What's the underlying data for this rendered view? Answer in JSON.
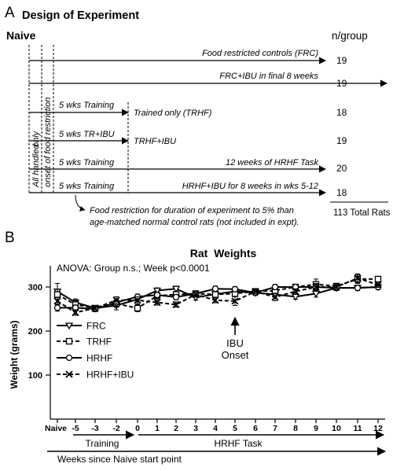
{
  "panel_a": {
    "letter": "A",
    "title": "Design of Experiment",
    "naive_label": "Naive",
    "n_header": "n/group",
    "rotated_label_1": "All handled",
    "rotated_label_2": "only",
    "rotated_label_3": "onset of food restriction",
    "groups": [
      {
        "training": "",
        "name": "Food restricted controls (FRC)",
        "n": "19"
      },
      {
        "training": "",
        "name": "FRC+IBU in final 8 weeks",
        "n": "19"
      },
      {
        "training": "5 wks Training",
        "name": "Trained only (TRHF)",
        "n": "18"
      },
      {
        "training": "5 wks TR+IBU",
        "name": "TRHF+IBU",
        "n": "19"
      },
      {
        "training": "5 wks Training",
        "name": "12 weeks of HRHF Task",
        "n": "20"
      },
      {
        "training": "5 wks Training",
        "name": "HRHF+IBU for 8 weeks in wks 5-12",
        "n": "18"
      }
    ],
    "note_line1": "Food restriction for duration of experiment to 5% than",
    "note_line2": "age-matched normal control rats (not included in expt).",
    "total": "113 Total Rats"
  },
  "panel_b": {
    "letter": "B",
    "stats": "ANOVA: Group n.s.; Week p<0.0001",
    "annotation": [
      "IBU",
      "Onset"
    ],
    "training_label": "Training",
    "task_label": "HRHF Task",
    "weeks_label": "Weeks since Naive start point"
  },
  "chart_data": {
    "type": "line",
    "title": "Rat  Weights",
    "xlabel": "",
    "ylabel": "Weight (grams)",
    "categories": [
      "Naive",
      "-5",
      "-3",
      "-2",
      "0",
      "1",
      "2",
      "3",
      "4",
      "5",
      "6",
      "7",
      "8",
      "9",
      "10",
      "11",
      "12"
    ],
    "ylim": [
      0,
      330
    ],
    "yticks": [
      "100",
      "200",
      "300"
    ],
    "ytick_values": [
      100,
      200,
      300
    ],
    "legend_position": "left",
    "series": [
      {
        "name": "FRC",
        "style": "solid",
        "marker": "triangle-down",
        "values": [
          290,
          265,
          252,
          258,
          272,
          292,
          296,
          276,
          284,
          290,
          287,
          283,
          278,
          285,
          298,
          298,
          300
        ],
        "errors": [
          18,
          8,
          6,
          10,
          6,
          6,
          6,
          6,
          6,
          6,
          6,
          6,
          6,
          8,
          6,
          6,
          6
        ]
      },
      {
        "name": "TRHF",
        "style": "dashed",
        "marker": "square",
        "values": [
          283,
          260,
          252,
          262,
          252,
          280,
          283,
          285,
          283,
          285,
          290,
          292,
          300,
          306,
          302,
          318,
          318
        ],
        "errors": [
          12,
          8,
          6,
          8,
          8,
          6,
          6,
          6,
          6,
          6,
          6,
          6,
          6,
          12,
          6,
          10,
          6
        ]
      },
      {
        "name": "HRHF",
        "style": "solid",
        "marker": "circle",
        "values": [
          253,
          253,
          250,
          265,
          278,
          282,
          277,
          285,
          296,
          295,
          287,
          300,
          300,
          300,
          298,
          298,
          300
        ],
        "errors": [
          8,
          6,
          6,
          8,
          6,
          6,
          6,
          6,
          6,
          6,
          6,
          6,
          6,
          8,
          6,
          6,
          6
        ]
      },
      {
        "name": "HRHF+IBU",
        "style": "dashed",
        "marker": "x",
        "values": [
          268,
          242,
          252,
          270,
          270,
          265,
          260,
          283,
          270,
          268,
          290,
          277,
          290,
          300,
          300,
          320,
          305
        ],
        "errors": [
          8,
          6,
          6,
          8,
          8,
          6,
          6,
          6,
          6,
          10,
          6,
          8,
          6,
          8,
          6,
          10,
          6
        ]
      }
    ]
  }
}
